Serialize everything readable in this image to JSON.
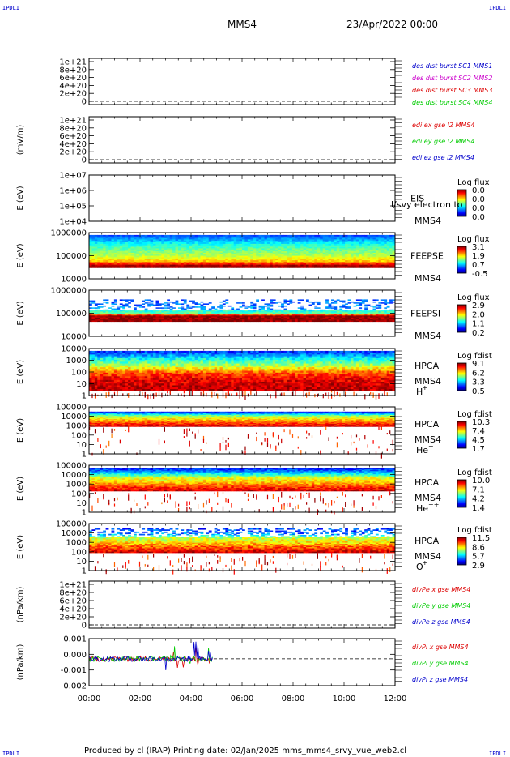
{
  "corners": {
    "tl": "IPDLI",
    "tr": "IPDLI",
    "bl": "IPDLI",
    "br": "IPDLI"
  },
  "header": {
    "spacecraft": "MMS4",
    "date": "23/Apr/2022 00:00"
  },
  "footer": {
    "text": "Produced by cl (IRAP)   Printing date: 02/Jan/2025   mms_mms4_srvy_vue_web2.cl"
  },
  "colors": {
    "red": "#dd0000",
    "green": "#00cc00",
    "blue": "#0000cc",
    "magenta": "#cc00cc"
  },
  "chart_data": [
    {
      "type": "line",
      "ylabel": "",
      "y_ticks": [
        "1e+21",
        "8e+20",
        "6e+20",
        "4e+20",
        "2e+20",
        "0"
      ],
      "series": [
        {
          "name": "des dist burst SC1 MMS1",
          "color": "#0000cc"
        },
        {
          "name": "des dist burst SC2 MMS2",
          "color": "#cc00cc"
        },
        {
          "name": "des dist burst SC3 MMS3",
          "color": "#dd0000"
        },
        {
          "name": "des dist burst SC4 MMS4",
          "color": "#00cc00"
        }
      ]
    },
    {
      "type": "line",
      "ylabel": "(mV/m)",
      "y_ticks": [
        "1e+21",
        "8e+20",
        "6e+20",
        "4e+20",
        "2e+20",
        "0"
      ],
      "series": [
        {
          "name": "edi ex gse l2 MMS4",
          "color": "#dd0000"
        },
        {
          "name": "edi ey gse l2 MMS4",
          "color": "#00cc00"
        },
        {
          "name": "edi ez gse l2 MMS4",
          "color": "#0000cc"
        }
      ]
    },
    {
      "type": "heatmap",
      "ylabel": "E (eV)",
      "y_ticks": [
        "1e+07",
        "1e+06",
        "1e+05",
        "1e+04"
      ],
      "label": "EIS",
      "label2": "MMS4",
      "overlay": "l/svy electron to",
      "cbar_title": "Log flux",
      "cbar_ticks": [
        "0.0",
        "0.0",
        "0.0",
        "0.0"
      ]
    },
    {
      "type": "heatmap",
      "ylabel": "E (eV)",
      "y_ticks": [
        "1000000",
        "100000",
        "10000"
      ],
      "label": "FEEPSE",
      "label2": "MMS4",
      "cbar_title": "Log flux",
      "cbar_ticks": [
        "3.1",
        "1.9",
        "0.7",
        "-0.5"
      ]
    },
    {
      "type": "heatmap",
      "ylabel": "E (eV)",
      "y_ticks": [
        "1000000",
        "100000",
        "10000"
      ],
      "label": "FEEPSI",
      "label2": "MMS4",
      "cbar_title": "Log flux",
      "cbar_ticks": [
        "2.9",
        "2.0",
        "1.1",
        "0.2"
      ]
    },
    {
      "type": "heatmap",
      "ylabel": "E (eV)",
      "y_ticks": [
        "10000",
        "1000",
        "100",
        "10",
        "1"
      ],
      "label": "HPCA",
      "label2": "MMS4",
      "species": "H",
      "sup": "+",
      "cbar_title": "Log fdist",
      "cbar_ticks": [
        "9.1",
        "6.2",
        "3.3",
        "0.5"
      ]
    },
    {
      "type": "heatmap",
      "ylabel": "E (eV)",
      "y_ticks": [
        "100000",
        "10000",
        "1000",
        "100",
        "10",
        "1"
      ],
      "label": "HPCA",
      "label2": "MMS4",
      "species": "He",
      "sup": "+",
      "cbar_title": "Log fdist",
      "cbar_ticks": [
        "10.3",
        "7.4",
        "4.5",
        "1.7"
      ]
    },
    {
      "type": "heatmap",
      "ylabel": "E (eV)",
      "y_ticks": [
        "100000",
        "10000",
        "1000",
        "100",
        "10",
        "1"
      ],
      "label": "HPCA",
      "label2": "MMS4",
      "species": "He",
      "sup": "++",
      "cbar_title": "Log fdist",
      "cbar_ticks": [
        "10.0",
        "7.1",
        "4.2",
        "1.4"
      ]
    },
    {
      "type": "heatmap",
      "ylabel": "E (eV)",
      "y_ticks": [
        "100000",
        "10000",
        "1000",
        "100",
        "10",
        "1"
      ],
      "label": "HPCA",
      "label2": "MMS4",
      "species": "O",
      "sup": "+",
      "cbar_title": "Log fdist",
      "cbar_ticks": [
        "11.5",
        "8.6",
        "5.7",
        "2.9"
      ]
    },
    {
      "type": "line",
      "ylabel": "(nPa/km)",
      "y_ticks": [
        "1e+21",
        "8e+20",
        "6e+20",
        "4e+20",
        "2e+20",
        "0"
      ],
      "series": [
        {
          "name": "divPe x gse MMS4",
          "color": "#dd0000"
        },
        {
          "name": "divPe y gse MMS4",
          "color": "#00cc00"
        },
        {
          "name": "divPe z gse MMS4",
          "color": "#0000cc"
        }
      ]
    },
    {
      "type": "line",
      "ylabel": "(nPa/km)",
      "y_ticks": [
        "0.001",
        "0.000",
        "-0.001",
        "-0.002"
      ],
      "ylim": [
        -0.002,
        0.0015
      ],
      "data_end_hour": 4.85,
      "series": [
        {
          "name": "divPi x gse MMS4",
          "color": "#dd0000"
        },
        {
          "name": "divPi y gse MMS4",
          "color": "#00cc00"
        },
        {
          "name": "divPi z gse MMS4",
          "color": "#0000cc"
        }
      ]
    }
  ],
  "x_axis": {
    "ticks": [
      "00:00",
      "02:00",
      "04:00",
      "06:00",
      "08:00",
      "10:00",
      "12:00"
    ],
    "range_hours": [
      0,
      12
    ]
  }
}
